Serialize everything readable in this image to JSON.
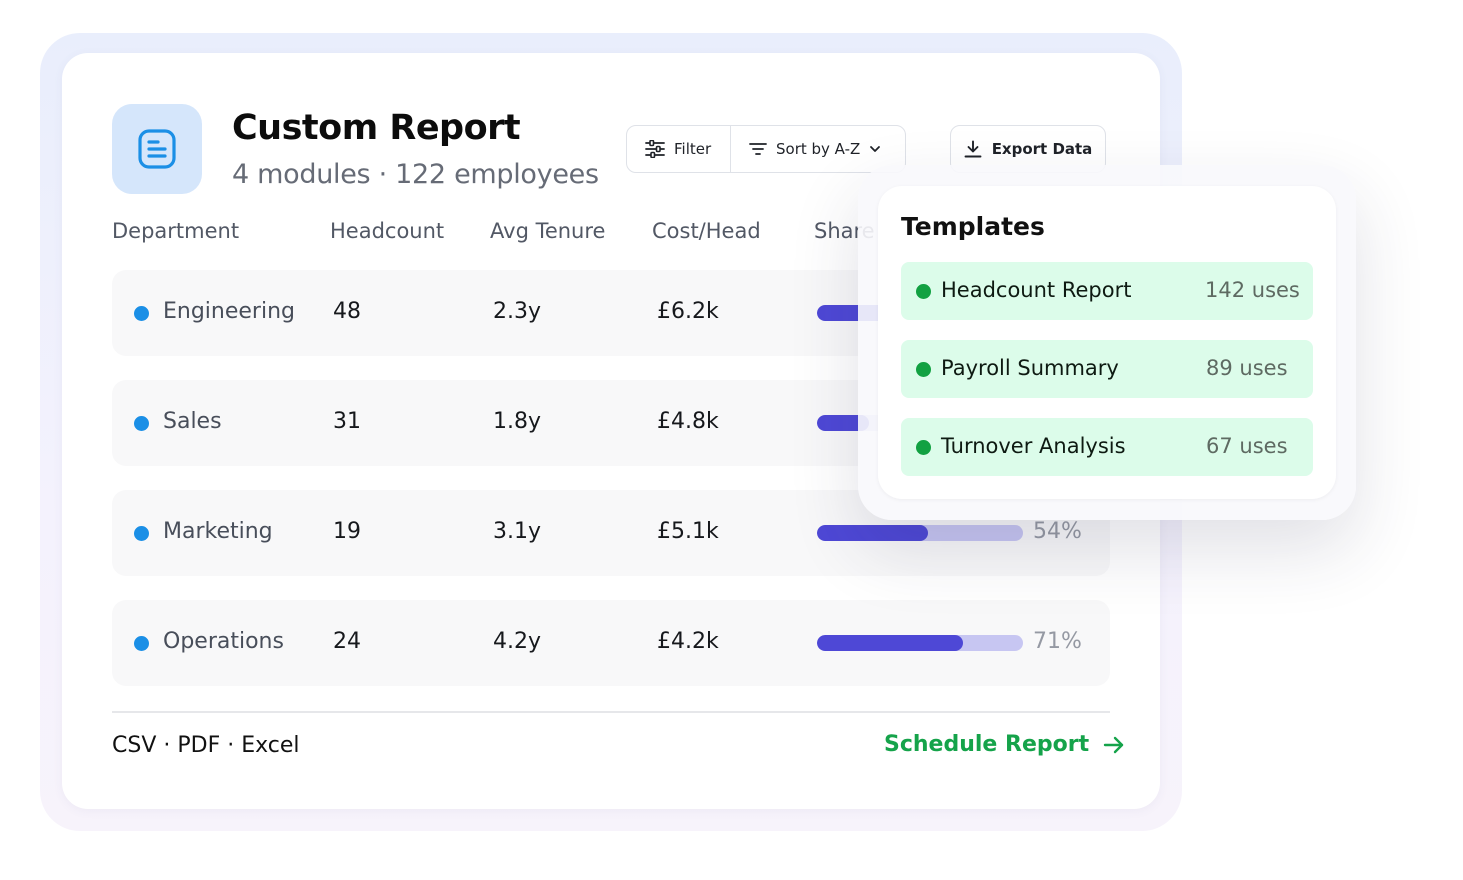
{
  "report": {
    "title": "Custom Report",
    "subtitle": "4 modules · 122 employees",
    "icon": "document-list-icon"
  },
  "toolbar": {
    "filter_label": "Filter",
    "sort_label": "Sort by A-Z",
    "export_label": "Export Data"
  },
  "table": {
    "columns": [
      "Department",
      "Headcount",
      "Avg Tenure",
      "Cost/Head",
      "Share"
    ],
    "rows": [
      {
        "department": "Engineering",
        "headcount": "48",
        "tenure": "2.3y",
        "cost": "£6.2k",
        "share": 0.39
      },
      {
        "department": "Sales",
        "headcount": "31",
        "tenure": "1.8y",
        "cost": "£4.8k",
        "share": 0.25
      },
      {
        "department": "Marketing",
        "headcount": "19",
        "tenure": "3.1y",
        "cost": "£5.1k",
        "share": 0.54,
        "share_label": "54%"
      },
      {
        "department": "Operations",
        "headcount": "24",
        "tenure": "4.2y",
        "cost": "£4.2k",
        "share": 0.71,
        "share_label": "71%"
      }
    ]
  },
  "footer": {
    "formats": "CSV · PDF · Excel",
    "schedule_label": "Schedule Report"
  },
  "templates": {
    "title": "Templates",
    "items": [
      {
        "name": "Headcount Report",
        "uses": "142 uses"
      },
      {
        "name": "Payroll Summary",
        "uses": "89 uses"
      },
      {
        "name": "Turnover Analysis",
        "uses": "67 uses"
      }
    ]
  },
  "colors": {
    "accent_green": "#15a34a",
    "bar_fill": "#4e48d6",
    "bar_track": "#c7c6f2",
    "dept_dot": "#1b8fe6"
  }
}
